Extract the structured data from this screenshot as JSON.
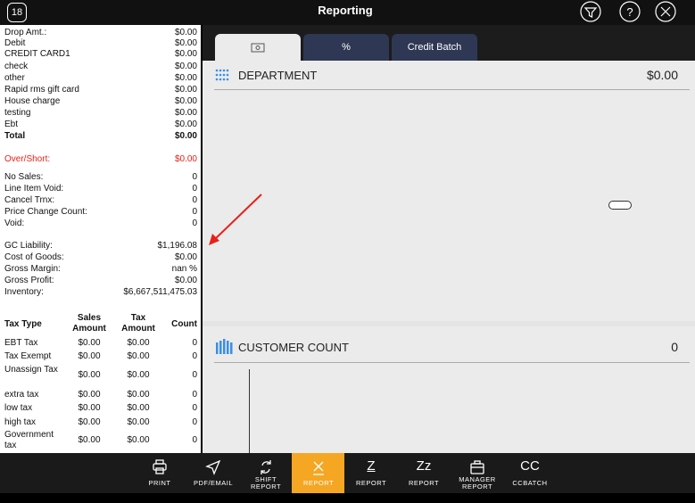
{
  "header": {
    "badge": "18",
    "title": "Reporting"
  },
  "summary": {
    "tenders": [
      {
        "label": "Drop Amt.:",
        "value": "$0.00"
      },
      {
        "label": "Debit",
        "value": "$0.00"
      },
      {
        "label": "CREDIT CARD1",
        "value": "$0.00"
      },
      {
        "label": "check",
        "value": "$0.00"
      },
      {
        "label": "other",
        "value": "$0.00"
      },
      {
        "label": "Rapid rms gift card",
        "value": "$0.00"
      },
      {
        "label": "House charge",
        "value": "$0.00"
      },
      {
        "label": "testing",
        "value": "$0.00"
      },
      {
        "label": "Ebt",
        "value": "$0.00"
      },
      {
        "label": "Total",
        "value": "$0.00"
      }
    ],
    "over_short": {
      "label": "Over/Short:",
      "value": "$0.00"
    },
    "counts": [
      {
        "label": "No Sales:",
        "value": 0
      },
      {
        "label": "Line Item Void:",
        "value": 0
      },
      {
        "label": "Cancel Trnx:",
        "value": 0
      },
      {
        "label": "Price Change Count:",
        "value": 0
      },
      {
        "label": "Void:",
        "value": 0
      }
    ],
    "financials": [
      {
        "label": "GC Liability:",
        "value": "$1,196.08"
      },
      {
        "label": "Cost of Goods:",
        "value": "$0.00"
      },
      {
        "label": "Gross Margin:",
        "value": "nan %"
      },
      {
        "label": "Gross Profit:",
        "value": "$0.00"
      },
      {
        "label": "Inventory:",
        "value": "$6,667,511,475.03"
      }
    ]
  },
  "tax_table": {
    "columns": [
      "Tax Type",
      "Sales Amount",
      "Tax Amount",
      "Count"
    ],
    "rows": [
      [
        "EBT Tax",
        "$0.00",
        "$0.00",
        0
      ],
      [
        "Tax Exempt",
        "$0.00",
        "$0.00",
        0
      ],
      [
        "Unassign Tax",
        "$0.00",
        "$0.00",
        0
      ],
      [
        "extra tax",
        "$0.00",
        "$0.00",
        0
      ],
      [
        "low tax",
        "$0.00",
        "$0.00",
        0
      ],
      [
        "high tax",
        "$0.00",
        "$0.00",
        0
      ],
      [
        "Government tax",
        "$0.00",
        "$0.00",
        0
      ]
    ]
  },
  "tabs": [
    "%",
    "Credit Batch"
  ],
  "panels": [
    {
      "title": "DEPARTMENT",
      "value": "$0.00"
    },
    {
      "title": "CUSTOMER COUNT",
      "value": 0
    }
  ],
  "toolbar": [
    {
      "label": "PRINT"
    },
    {
      "label": "PDF/EMAIL"
    },
    {
      "label": "SHIFT REPORT"
    },
    {
      "label": "REPORT"
    },
    {
      "glyph": "Z",
      "label": "REPORT"
    },
    {
      "glyph": "Zz",
      "label": "REPORT"
    },
    {
      "label": "MANAGER REPORT"
    },
    {
      "glyph": "CC",
      "label": "CCBATCH"
    }
  ]
}
